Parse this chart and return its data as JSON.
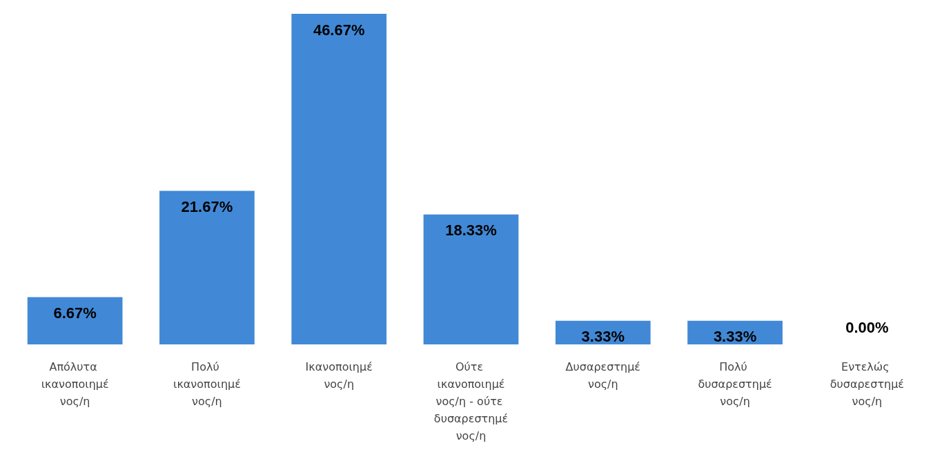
{
  "chart_data": {
    "type": "bar",
    "categories": [
      "Απόλυτα ικανοποιημένος/η",
      "Πολύ ικανοποιημένος/η",
      "Ικανοποιημένος/η",
      "Ούτε ικανοποιημένος/η - ούτε δυσαρεστημένος/η",
      "Δυσαρεστημένος/η",
      "Πολύ δυσαρεστημένος/η",
      "Εντελώς δυσαρεστημένος/η"
    ],
    "values": [
      6.67,
      21.67,
      46.67,
      18.33,
      3.33,
      3.33,
      0
    ],
    "value_labels": [
      "6.67%",
      "21.67%",
      "46.67%",
      "18.33%",
      "3.33%",
      "3.33%",
      "0.00%"
    ],
    "color": "#4189d6"
  }
}
